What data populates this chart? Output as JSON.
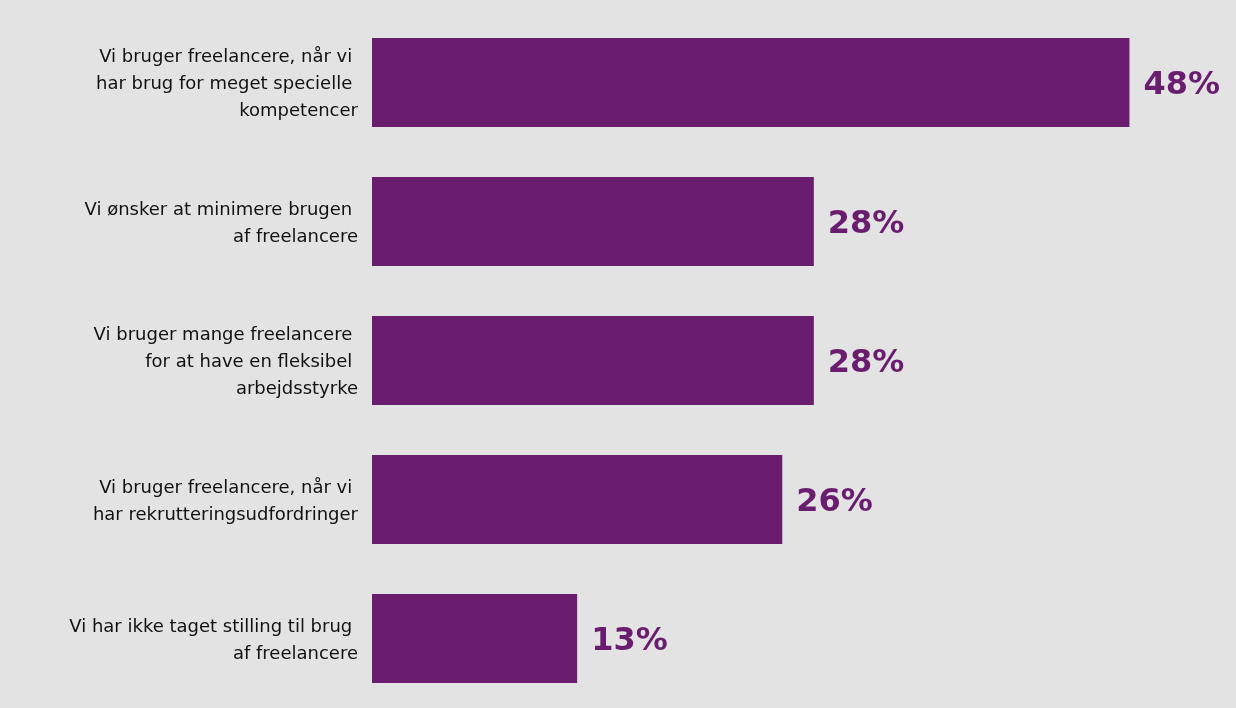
{
  "chart_data": {
    "type": "bar",
    "orientation": "horizontal",
    "categories": [
      "Vi bruger freelancere, når vi har brug for meget specielle kompetencer",
      "Vi ønsker at minimere brugen af freelancere",
      "Vi bruger mange freelancere for at have en fleksibel arbejdsstyrke",
      "Vi bruger freelancere, når vi har rekrutteringsudfordringer",
      "Vi har ikke taget stilling til brug af freelancere"
    ],
    "values": [
      48,
      28,
      28,
      26,
      13
    ],
    "value_labels": [
      "48%",
      "28%",
      "28%",
      "26%",
      "13%"
    ],
    "color": "#6a1d6f",
    "grid": false,
    "tick_labels": "y"
  }
}
